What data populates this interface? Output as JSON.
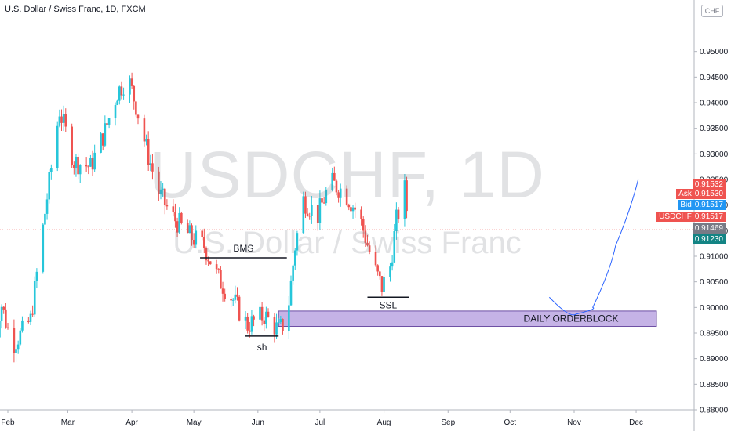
{
  "header": {
    "title": "U.S. Dollar / Swiss Franc, 1D, FXCM",
    "currency_button": "CHF"
  },
  "watermark": {
    "symbol": "USDCHF, 1D",
    "description": "U.S. Dollar / Swiss Franc"
  },
  "price_tags": {
    "high": {
      "value": "0.91532",
      "color": "#ef5350"
    },
    "ask": {
      "label": "Ask",
      "value": "0.91530",
      "color": "#ef5350"
    },
    "bid": {
      "label": "Bid",
      "value": "0.91517",
      "color": "#2196f3"
    },
    "last": {
      "label": "USDCHF",
      "value": "0.91517",
      "color": "#ef5350"
    },
    "ma1": {
      "value": "0.91469",
      "color": "#787b86"
    },
    "ma2": {
      "value": "0.91230",
      "color": "#138484"
    }
  },
  "annotations": {
    "bms": "BMS",
    "sh": "sh",
    "ssl": "SSL",
    "orderblock": "DAILY ORDERBLOCK"
  },
  "colors": {
    "up": "#26c6da",
    "down": "#ef5350",
    "orderblock_fill": "#c5b3e6",
    "projection": "#2962ff"
  },
  "chart_data": {
    "type": "candlestick",
    "title": "U.S. Dollar / Swiss Franc, 1D, FXCM",
    "y_axis": {
      "range": [
        0.88,
        0.955
      ],
      "ticks": [
        "0.95000",
        "0.94500",
        "0.94000",
        "0.93500",
        "0.93000",
        "0.92500",
        "0.92000",
        "0.91500",
        "0.91000",
        "0.90500",
        "0.90000",
        "0.89500",
        "0.89000",
        "0.88500",
        "0.88000"
      ]
    },
    "x_axis": {
      "ticks": [
        "Feb",
        "Mar",
        "Apr",
        "May",
        "Jun",
        "Jul",
        "Aug",
        "Sep",
        "Oct",
        "Nov",
        "Dec"
      ]
    },
    "last_price": 0.91517,
    "anchors": [
      {
        "date": "2020-01-24",
        "close": 0.894
      },
      {
        "date": "2020-01-29",
        "close": 0.9005
      },
      {
        "date": "2020-02-03",
        "close": 0.8925
      },
      {
        "date": "2020-02-12",
        "close": 0.8975
      },
      {
        "date": "2020-02-20",
        "close": 0.9215
      },
      {
        "date": "2020-02-26",
        "close": 0.9385
      },
      {
        "date": "2020-03-04",
        "close": 0.9285
      },
      {
        "date": "2020-03-12",
        "close": 0.9275
      },
      {
        "date": "2020-03-19",
        "close": 0.9345
      },
      {
        "date": "2020-03-25",
        "close": 0.942
      },
      {
        "date": "2020-03-30",
        "close": 0.945
      },
      {
        "date": "2020-04-03",
        "close": 0.9395
      },
      {
        "date": "2020-04-08",
        "close": 0.931
      },
      {
        "date": "2020-04-14",
        "close": 0.9225
      },
      {
        "date": "2020-04-20",
        "close": 0.918
      },
      {
        "date": "2020-04-29",
        "close": 0.914
      },
      {
        "date": "2020-05-06",
        "close": 0.912
      },
      {
        "date": "2020-05-13",
        "close": 0.9055
      },
      {
        "date": "2020-05-20",
        "close": 0.9015
      },
      {
        "date": "2020-05-27",
        "close": 0.8965
      },
      {
        "date": "2020-06-04",
        "close": 0.8985
      },
      {
        "date": "2020-06-11",
        "close": 0.8955
      },
      {
        "date": "2020-06-15",
        "close": 0.8975
      },
      {
        "date": "2020-06-19",
        "close": 0.912
      },
      {
        "date": "2020-06-23",
        "close": 0.921
      },
      {
        "date": "2020-06-30",
        "close": 0.918
      },
      {
        "date": "2020-07-06",
        "close": 0.9245
      },
      {
        "date": "2020-07-13",
        "close": 0.9225
      },
      {
        "date": "2020-07-20",
        "close": 0.918
      },
      {
        "date": "2020-07-27",
        "close": 0.908
      },
      {
        "date": "2020-07-31",
        "close": 0.904
      },
      {
        "date": "2020-08-04",
        "close": 0.908
      },
      {
        "date": "2020-08-07",
        "close": 0.917
      },
      {
        "date": "2020-08-11",
        "close": 0.923
      },
      {
        "date": "2020-08-13",
        "close": 0.9155
      }
    ],
    "drawings": {
      "bms_line": {
        "start": "2020-05-04",
        "end": "2020-06-15",
        "price": 0.9097
      },
      "sh_line": {
        "start": "2020-05-26",
        "end": "2020-06-11",
        "price": 0.8944
      },
      "ssl_line": {
        "start": "2020-07-24",
        "end": "2020-08-13",
        "price": 0.902
      },
      "orderblock": {
        "start": "2020-06-11",
        "end": "2020-12-31",
        "top": 0.8993,
        "bottom": 0.8963
      },
      "projection_curve": [
        {
          "date": "2020-10-20",
          "price": 0.902
        },
        {
          "date": "2020-11-02",
          "price": 0.8987
        },
        {
          "date": "2020-11-10",
          "price": 0.9
        },
        {
          "date": "2020-11-21",
          "price": 0.912
        },
        {
          "date": "2020-12-02",
          "price": 0.925
        }
      ]
    }
  }
}
